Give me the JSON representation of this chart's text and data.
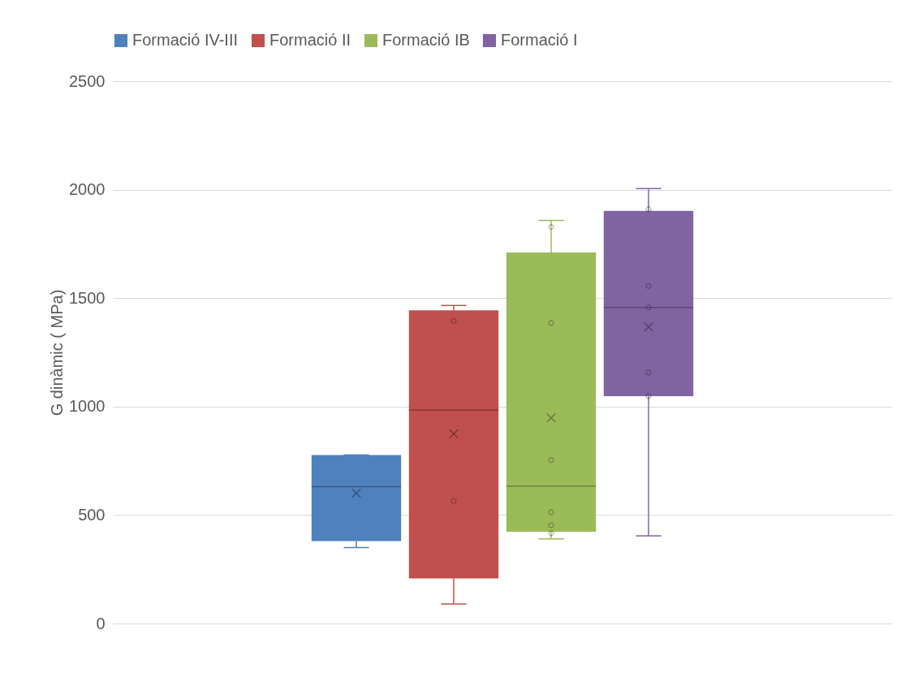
{
  "chart_data": {
    "type": "box",
    "ylabel": "G dinàmic ( MPa)",
    "categories": [
      null
    ],
    "ylim": [
      0,
      2500
    ],
    "yticks": [
      0,
      500,
      1000,
      1500,
      2000,
      2500
    ],
    "grid": "y",
    "legend": "top",
    "tick_labels": "y",
    "marker": "circle",
    "series": [
      {
        "name": "Formació IV-III",
        "color": "#4f81bd",
        "boxes": [
          {
            "low": 350,
            "q1": 380,
            "median": 631,
            "q3": 777,
            "high": 777,
            "mean": 601
          }
        ]
      },
      {
        "name": "Formació II",
        "color": "#c0504d",
        "boxes": [
          {
            "low": 90,
            "q1": 208,
            "median": 983,
            "q3": 1444,
            "high": 1466,
            "mean": 875,
            "outliers": [
              1395,
              564
            ]
          }
        ]
      },
      {
        "name": "Formació IB",
        "color": "#9bbb59",
        "boxes": [
          {
            "low": 390,
            "q1": 423,
            "median": 633,
            "q3": 1710,
            "high": 1858,
            "mean": 948,
            "outliers": [
              1828,
              1385,
              753,
              513,
              453,
              416
            ]
          }
        ]
      },
      {
        "name": "Formació I",
        "color": "#8064a2",
        "boxes": [
          {
            "low": 404,
            "q1": 1048,
            "median": 1457,
            "q3": 1902,
            "high": 2005,
            "mean": 1367,
            "outliers": [
              1910,
              1556,
              1457,
              1157,
              1048
            ]
          }
        ]
      }
    ]
  }
}
